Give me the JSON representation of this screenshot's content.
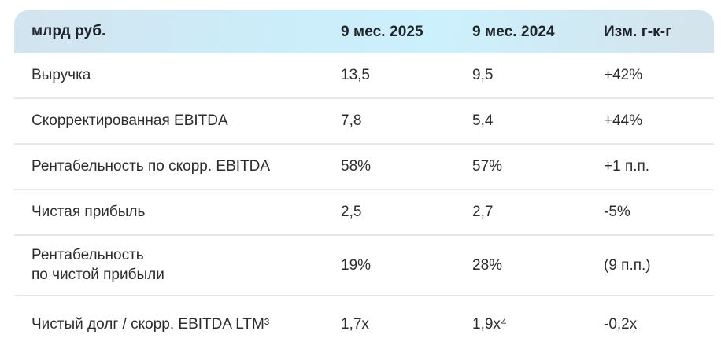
{
  "table": {
    "unit_header": "млрд руб.",
    "columns": {
      "period_current": "9 мес. 2025",
      "period_prior": "9 мес. 2024",
      "change": "Изм. г-к-г"
    },
    "rows": [
      {
        "label": "Выручка",
        "v2025": "13,5",
        "v2024": "9,5",
        "change": "+42%"
      },
      {
        "label": "Скорректированная EBITDA",
        "v2025": "7,8",
        "v2024": "5,4",
        "change": "+44%"
      },
      {
        "label": "Рентабельность по скорр. EBITDA",
        "v2025": "58%",
        "v2024": "57%",
        "change": "+1 п.п."
      },
      {
        "label": "Чистая прибыль",
        "v2025": "2,5",
        "v2024": "2,7",
        "change": "-5%"
      },
      {
        "label": "Рентабельность\nпо чистой прибыли",
        "v2025": "19%",
        "v2024": "28%",
        "change": "(9 п.п.)"
      },
      {
        "label": "Чистый долг / скорр. EBITDA LTM³",
        "v2025": "1,7x",
        "v2024": "1,9x⁴",
        "change": "-0,2x"
      }
    ],
    "colors": {
      "header_gradient_edge": "#d4e3ed",
      "header_gradient_center": "#cceffb",
      "row_divider": "#e7e7e7",
      "text": "#2d2d2d"
    }
  }
}
